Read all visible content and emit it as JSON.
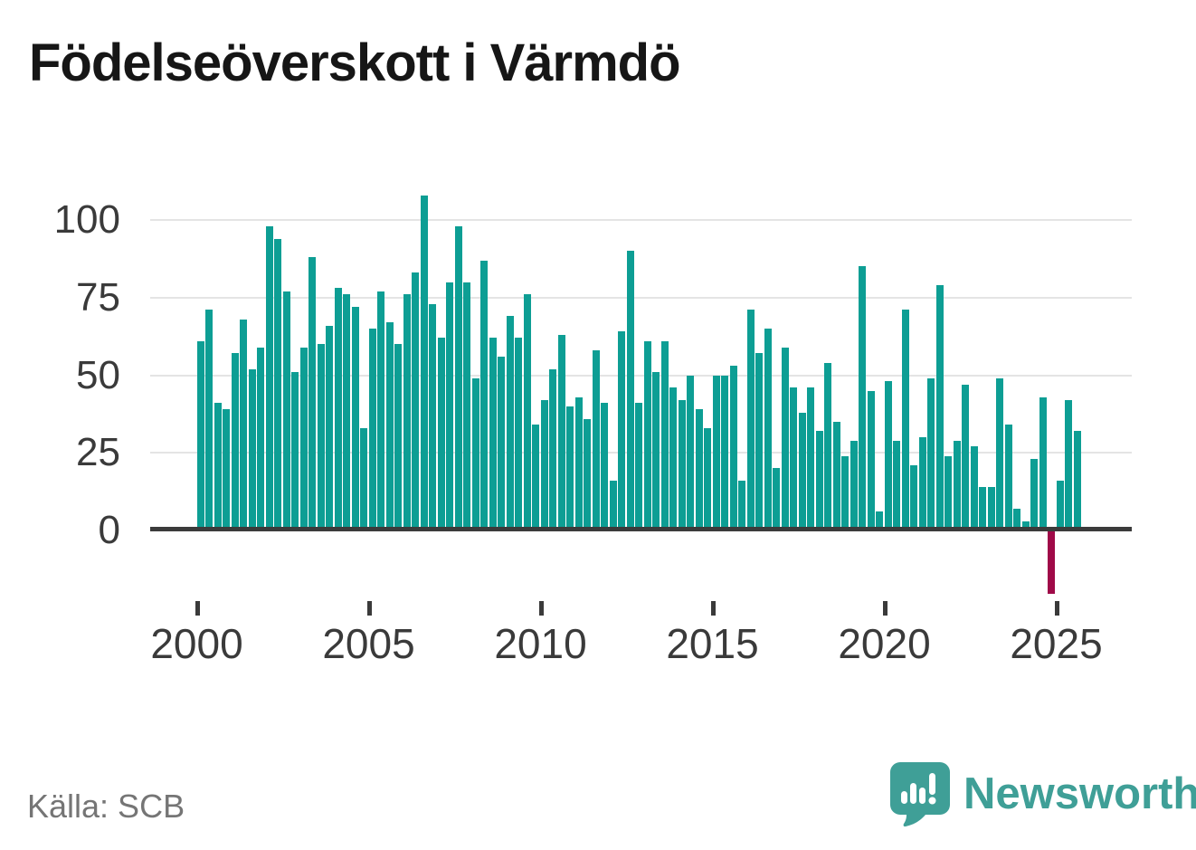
{
  "title": "Födelseöverskott i Värmdö",
  "source": "Källa: SCB",
  "logo": {
    "text": "Newsworthy"
  },
  "colors": {
    "bar_positive": "#0d9e94",
    "bar_negative": "#9f0a48",
    "grid": "#e4e4e4",
    "axis_line": "#3b3b3b",
    "axis_text": "#3a3a3a",
    "title_text": "#161616",
    "source_text": "#757575",
    "logo_teal": "#3f9f97"
  },
  "chart_data": {
    "type": "bar",
    "title": "Födelseöverskott i Värmdö",
    "xlabel": "",
    "ylabel": "",
    "frequency": "quarterly",
    "start_period": "2000Q1",
    "end_period": "2025Q3",
    "x_tick_years": [
      2000,
      2005,
      2010,
      2015,
      2020,
      2025
    ],
    "y_ticks": [
      0,
      25,
      50,
      75,
      100
    ],
    "ylim": [
      -22,
      112
    ],
    "grid": true,
    "legend": false,
    "series": [
      {
        "name": "Födelseöverskott",
        "values": [
          61,
          71,
          41,
          39,
          57,
          68,
          52,
          59,
          98,
          94,
          77,
          51,
          59,
          88,
          60,
          66,
          78,
          76,
          72,
          33,
          65,
          77,
          67,
          60,
          76,
          83,
          108,
          73,
          62,
          80,
          98,
          80,
          49,
          87,
          62,
          56,
          69,
          62,
          76,
          34,
          42,
          52,
          63,
          40,
          43,
          36,
          58,
          41,
          16,
          64,
          90,
          41,
          61,
          51,
          61,
          46,
          42,
          50,
          39,
          33,
          50,
          50,
          53,
          16,
          71,
          57,
          65,
          20,
          59,
          46,
          38,
          46,
          32,
          54,
          35,
          24,
          29,
          85,
          45,
          6,
          48,
          29,
          71,
          21,
          30,
          49,
          79,
          24,
          29,
          47,
          27,
          14,
          14,
          49,
          34,
          7,
          3,
          23,
          43,
          -20,
          16,
          42,
          32
        ]
      }
    ],
    "negative_values_highlighted": true
  }
}
